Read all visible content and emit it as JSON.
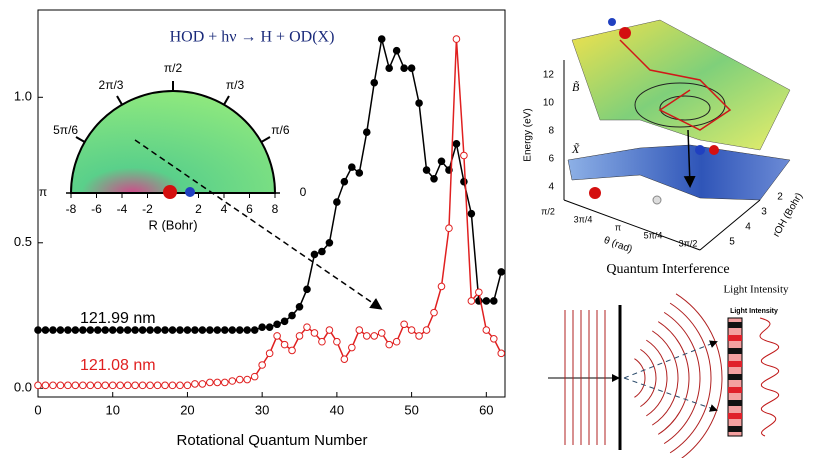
{
  "chart_data": {
    "type": "line",
    "xlabel": "Rotational Quantum Number",
    "xlim": [
      0,
      62.5
    ],
    "ylim": [
      -0.03,
      1.3
    ],
    "xticks": [
      0,
      10,
      20,
      30,
      40,
      50,
      60
    ],
    "yticks": [
      {
        "value": 0,
        "label": "0.0"
      },
      0.5,
      {
        "value": 1,
        "label": "1.0"
      }
    ],
    "x": [
      0,
      1,
      2,
      3,
      4,
      5,
      6,
      7,
      8,
      9,
      10,
      11,
      12,
      13,
      14,
      15,
      16,
      17,
      18,
      19,
      20,
      21,
      22,
      23,
      24,
      25,
      26,
      27,
      28,
      29,
      30,
      31,
      32,
      33,
      34,
      35,
      36,
      37,
      38,
      39,
      40,
      41,
      42,
      43,
      44,
      45,
      46,
      47,
      48,
      49,
      50,
      51,
      52,
      53,
      54,
      55,
      56,
      57,
      58,
      59,
      60,
      61,
      62
    ],
    "series": [
      {
        "name": "121.99 nm",
        "color": "#000000",
        "marker": "filled",
        "values": [
          0.2,
          0.2,
          0.2,
          0.2,
          0.2,
          0.2,
          0.2,
          0.2,
          0.2,
          0.2,
          0.2,
          0.2,
          0.2,
          0.2,
          0.2,
          0.2,
          0.2,
          0.2,
          0.2,
          0.2,
          0.2,
          0.2,
          0.2,
          0.2,
          0.2,
          0.2,
          0.2,
          0.2,
          0.2,
          0.2,
          0.21,
          0.21,
          0.22,
          0.23,
          0.25,
          0.28,
          0.34,
          0.46,
          0.47,
          0.5,
          0.64,
          0.71,
          0.76,
          0.74,
          0.88,
          1.05,
          1.2,
          1.1,
          1.16,
          1.1,
          1.1,
          0.98,
          0.75,
          0.72,
          0.78,
          0.75,
          0.84,
          0.71,
          0.6,
          0.3,
          0.3,
          0.3,
          0.4
        ]
      },
      {
        "name": "121.08 nm",
        "color": "#e02020",
        "marker": "open",
        "values": [
          0.01,
          0.01,
          0.01,
          0.01,
          0.01,
          0.01,
          0.01,
          0.01,
          0.01,
          0.01,
          0.01,
          0.01,
          0.01,
          0.01,
          0.01,
          0.01,
          0.01,
          0.01,
          0.01,
          0.01,
          0.01,
          0.015,
          0.015,
          0.02,
          0.02,
          0.02,
          0.025,
          0.03,
          0.03,
          0.04,
          0.08,
          0.12,
          0.18,
          0.15,
          0.13,
          0.18,
          0.21,
          0.19,
          0.16,
          0.2,
          0.16,
          0.1,
          0.14,
          0.2,
          0.18,
          0.18,
          0.19,
          0.15,
          0.16,
          0.22,
          0.2,
          0.18,
          0.2,
          0.26,
          0.35,
          0.55,
          1.2,
          0.8,
          0.3,
          0.33,
          0.2,
          0.17,
          0.12
        ]
      }
    ]
  },
  "inset": {
    "title": "HOD + hν → H + OD(X)",
    "angle_labels": [
      "π/2",
      "2π/3",
      "π/3",
      "5π/6",
      "π/6",
      "π",
      "0"
    ],
    "xticks": [
      -8,
      -6,
      -4,
      -2,
      2,
      4,
      6,
      8
    ],
    "xlabel": "R (Bohr)"
  },
  "surface": {
    "zlabel": "Energy (eV)",
    "zticks": [
      "12",
      "10",
      "8",
      "6",
      "4"
    ],
    "upper_state": "B̃",
    "lower_state": "X̃",
    "theta_label": "θ (rad)",
    "theta_ticks": [
      "π/2",
      "3π/4",
      "π",
      "5π/4",
      "3π/2"
    ],
    "r_label": "rOH (Bohr)",
    "r_ticks": [
      "5",
      "4",
      "3",
      "2"
    ]
  },
  "interference": {
    "title": "Quantum Interference",
    "caption": "Light Intensity",
    "screen_label": "Light Intensity"
  }
}
